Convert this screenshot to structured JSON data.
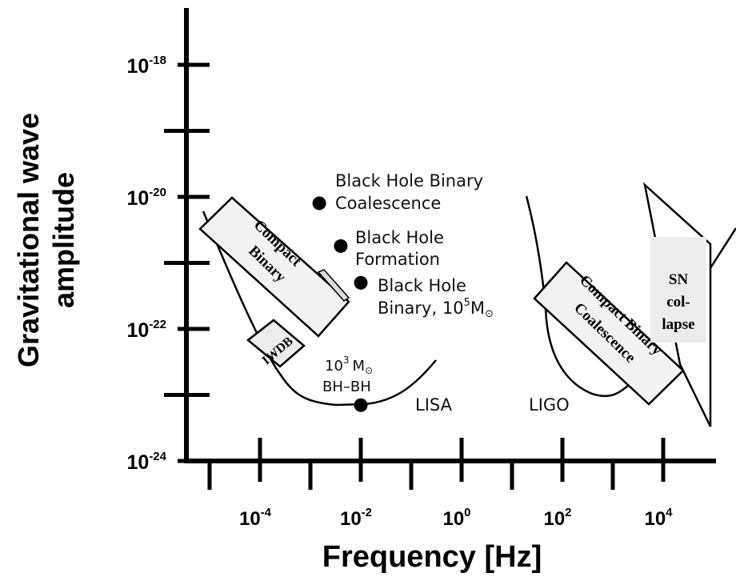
{
  "chart_data": {
    "type": "scatter",
    "title": "",
    "xlabel": "Frequency [Hz]",
    "ylabel_lines": [
      "Gravitational wave",
      "amplitude"
    ],
    "x_scale": "log",
    "y_scale": "log",
    "xlim": [
      1e-06,
      100000.0
    ],
    "ylim": [
      1e-24,
      1e-17
    ],
    "grid": false,
    "x_ticks": [
      {
        "value": 0.0001,
        "base": "10",
        "exp": "-4"
      },
      {
        "value": 0.01,
        "base": "10",
        "exp": "-2"
      },
      {
        "value": 1,
        "base": "10",
        "exp": "0"
      },
      {
        "value": 100,
        "base": "10",
        "exp": "2"
      },
      {
        "value": 10000,
        "base": "10",
        "exp": "4"
      }
    ],
    "x_minor_ticks": [
      1e-05,
      0.001,
      0.1,
      10,
      1000
    ],
    "y_ticks": [
      {
        "value": 1e-18,
        "base": "10",
        "exp": "-18"
      },
      {
        "value": 1e-20,
        "base": "10",
        "exp": "-20"
      },
      {
        "value": 1e-22,
        "base": "10",
        "exp": "-22"
      },
      {
        "value": 1e-24,
        "base": "10",
        "exp": "-24"
      }
    ],
    "y_minor_ticks": [
      1e-19,
      1e-21,
      1e-23
    ],
    "points": [
      {
        "name": "bh-binary-coalescence",
        "x": 0.0015,
        "y": 8e-21,
        "label_lines": [
          "Black Hole Binary",
          "Coalescence"
        ]
      },
      {
        "name": "bh-formation",
        "x": 0.004,
        "y": 1.8e-21,
        "label_lines": [
          "Black Hole",
          "Formation"
        ]
      },
      {
        "name": "bh-binary-1e5",
        "x": 0.01,
        "y": 5e-22,
        "label_lines": [
          "Black Hole",
          "Binary, 10"
        ],
        "label_sup": "5",
        "label_suffix": "M",
        "label_sub": "⊙"
      },
      {
        "name": "bh-bh-1e3",
        "x": 0.01,
        "y": 7e-24,
        "label_lines": [
          "10",
          "BH–BH"
        ],
        "label_sup": "3",
        "label_suffix": "M",
        "label_sub": "⊙"
      }
    ],
    "curves": [
      {
        "name": "LISA",
        "label": "LISA"
      },
      {
        "name": "LIGO",
        "label": "LIGO"
      }
    ],
    "regions": [
      {
        "name": "compact-binary",
        "label_lines": [
          "Compact",
          "Binary"
        ]
      },
      {
        "name": "iwdb",
        "label_lines": [
          "IWDB"
        ]
      },
      {
        "name": "compact-binary-coalescence",
        "label_lines": [
          "Compact Binary",
          "Coalescence"
        ]
      },
      {
        "name": "sn-collapse",
        "label_lines": [
          "SN",
          "col-",
          "lapse"
        ]
      }
    ]
  }
}
